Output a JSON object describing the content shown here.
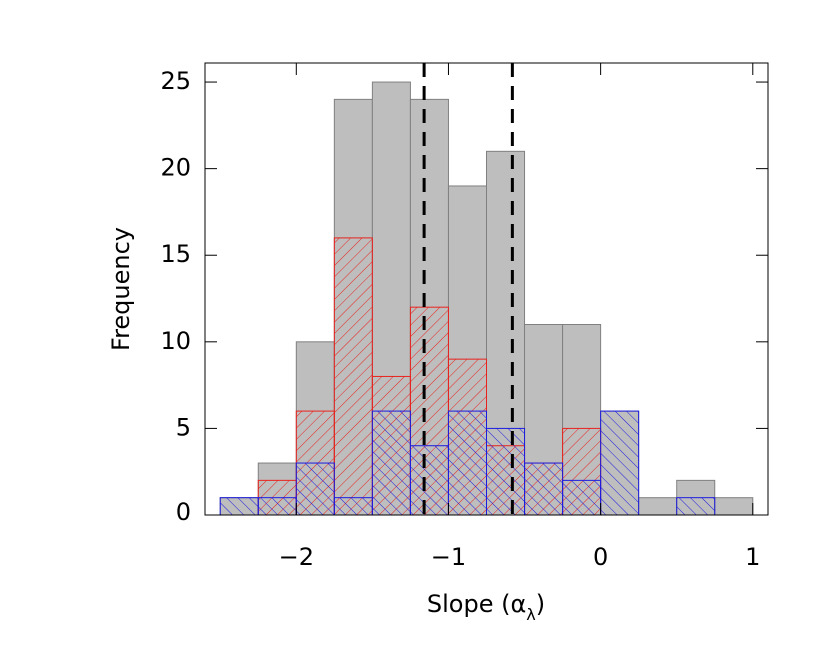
{
  "chart_data": {
    "type": "histogram",
    "bins": [
      -2.5,
      -2.25,
      -2,
      -1.75,
      -1.5,
      -1.25,
      -1,
      -0.75,
      -0.5,
      -0.25,
      0,
      0.25,
      0.5,
      0.75,
      1
    ],
    "series": [
      {
        "color": "#bebebe",
        "hatch": "none",
        "values": [
          1,
          3,
          10,
          24,
          25,
          24,
          19,
          21,
          11,
          11,
          6,
          1,
          2,
          1
        ]
      },
      {
        "color": "#e8231e",
        "hatch": "forward",
        "values": [
          0,
          2,
          6,
          16,
          8,
          12,
          9,
          4,
          3,
          5,
          0,
          0,
          0,
          0
        ]
      },
      {
        "color": "#1c1ce0",
        "hatch": "backward",
        "values": [
          1,
          1,
          3,
          1,
          6,
          4,
          6,
          5,
          3,
          2,
          6,
          0,
          1,
          0
        ]
      }
    ],
    "vlines": [
      -1.16,
      -0.58
    ],
    "xlim": [
      -2.6,
      1.1
    ],
    "ylim": [
      0,
      26.1
    ],
    "xticks": [
      {
        "value": -2,
        "label": "−2"
      },
      {
        "value": -1,
        "label": "−1"
      },
      0,
      1
    ],
    "yticks": [
      0,
      5,
      10,
      15,
      20,
      25
    ],
    "xlabel": [
      "Slope (α",
      "λ",
      ")"
    ],
    "ylabel": "Frequency"
  }
}
